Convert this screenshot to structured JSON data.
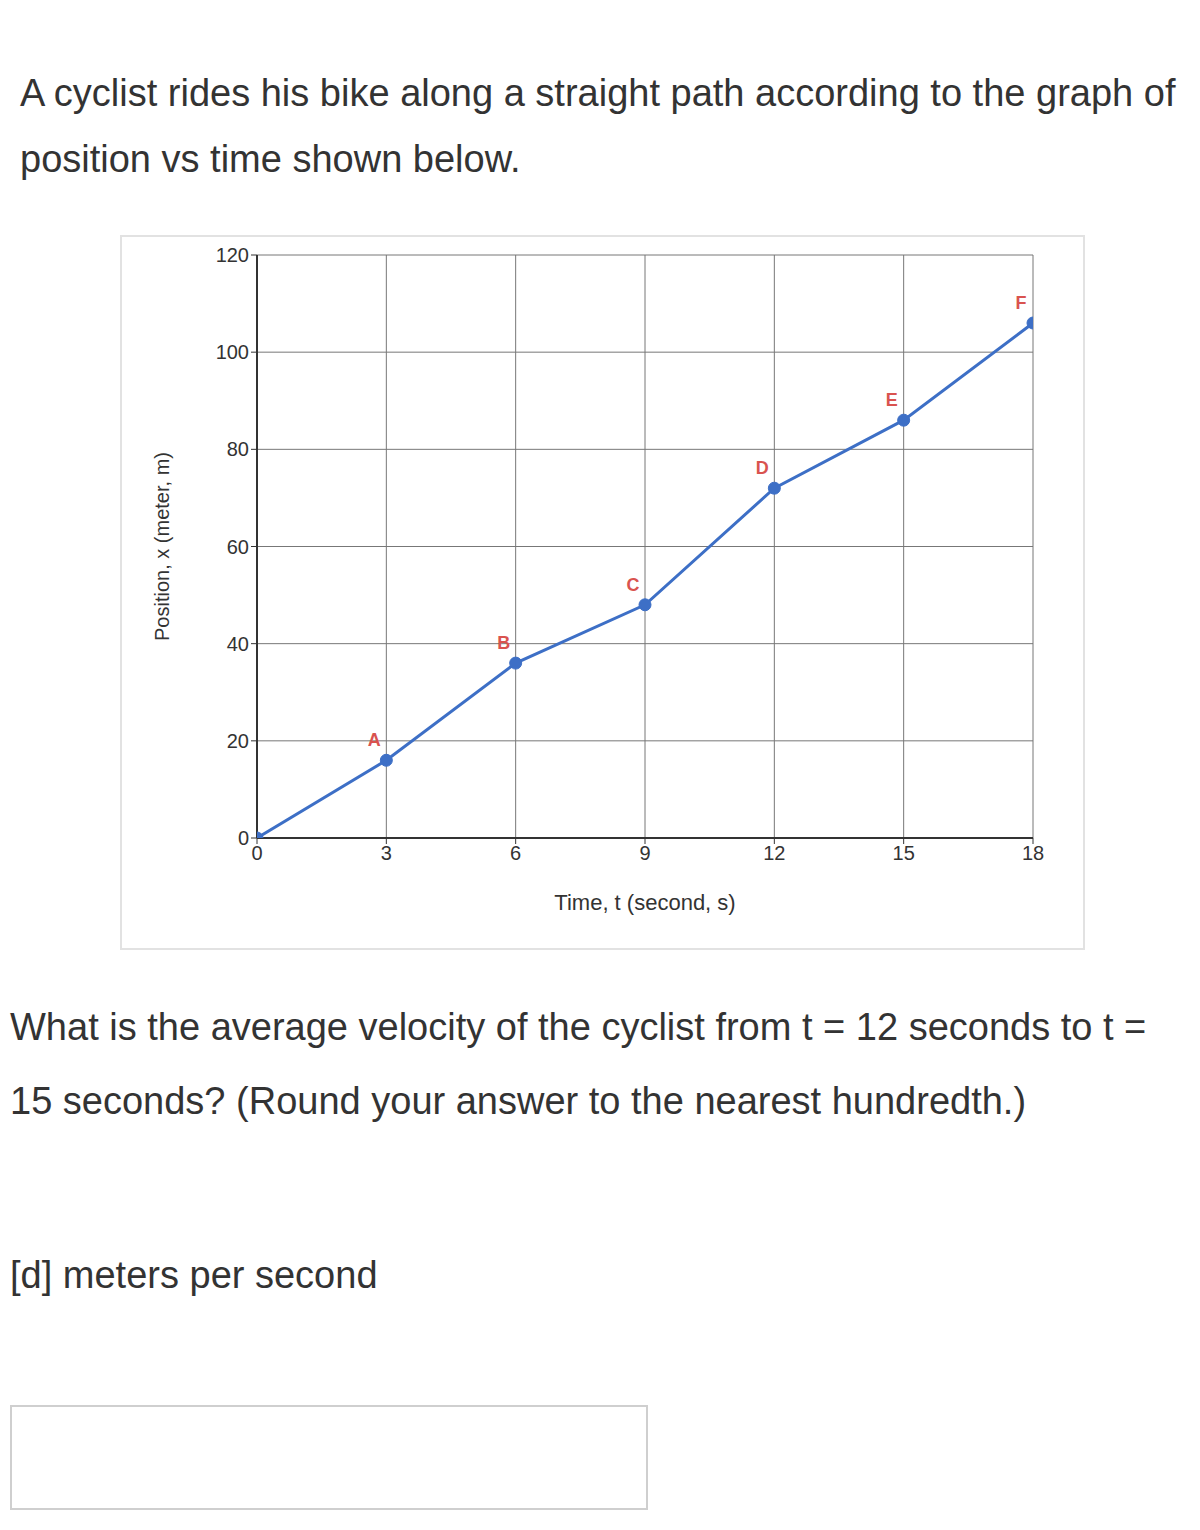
{
  "header": "A cyclist rides his bike along a straight path according to the graph of position vs time shown below.",
  "question": "What is the average velocity of the cyclist from t = 12 seconds to t = 15 seconds? (Round your answer to the nearest hundredth.)",
  "answer_prompt": "[d] meters per second",
  "chart_data": {
    "type": "line",
    "x_label": "Time, t (second, s)",
    "y_label": "Position, x (meter, m)",
    "x": [
      0,
      3,
      6,
      9,
      12,
      15,
      18
    ],
    "values": [
      0,
      16,
      36,
      48,
      72,
      86,
      106
    ],
    "point_labels": [
      null,
      "A",
      "B",
      "C",
      "D",
      "E",
      "F"
    ],
    "color": "#3d6fc6",
    "marker": "circle",
    "xlim": [
      0,
      18
    ],
    "ylim": [
      0,
      120
    ],
    "xticks": [
      0,
      3,
      6,
      9,
      12,
      15,
      18
    ],
    "yticks": [
      0,
      20,
      40,
      60,
      80,
      100,
      120
    ],
    "grid": true
  }
}
